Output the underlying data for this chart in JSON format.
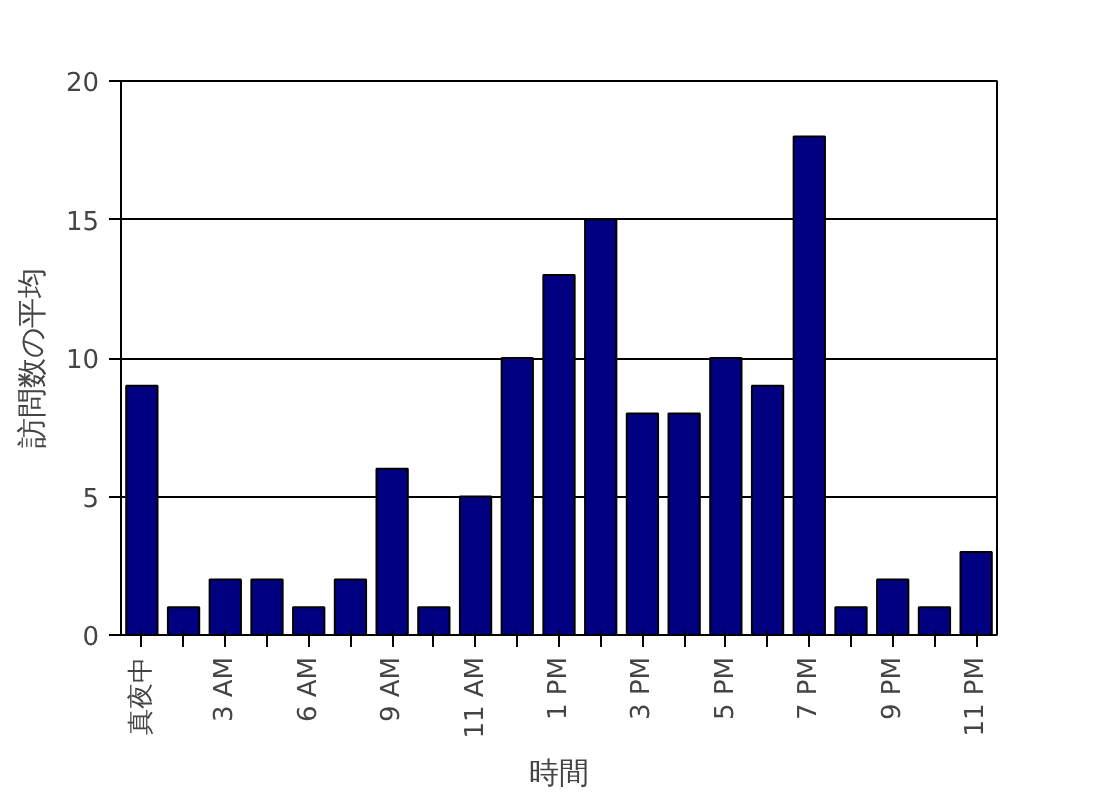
{
  "chart_data": {
    "type": "bar",
    "xlabel": "時間",
    "ylabel": "訪問数の平均",
    "categories": [
      "真夜中",
      null,
      "3 AM",
      null,
      "6 AM",
      null,
      "9 AM",
      null,
      "11 AM",
      null,
      "1 PM",
      null,
      "3 PM",
      null,
      "5 PM",
      null,
      "7 PM",
      null,
      "9 PM",
      null,
      "11 PM"
    ],
    "values": [
      9,
      1,
      2,
      2,
      1,
      2,
      6,
      1,
      5,
      10,
      13,
      15,
      8,
      8,
      10,
      9,
      18,
      1,
      2,
      1,
      3
    ],
    "color": "#000080",
    "ylim": [
      0,
      20
    ],
    "yticks": [
      0,
      5,
      10,
      15,
      20
    ],
    "grid": "y"
  }
}
